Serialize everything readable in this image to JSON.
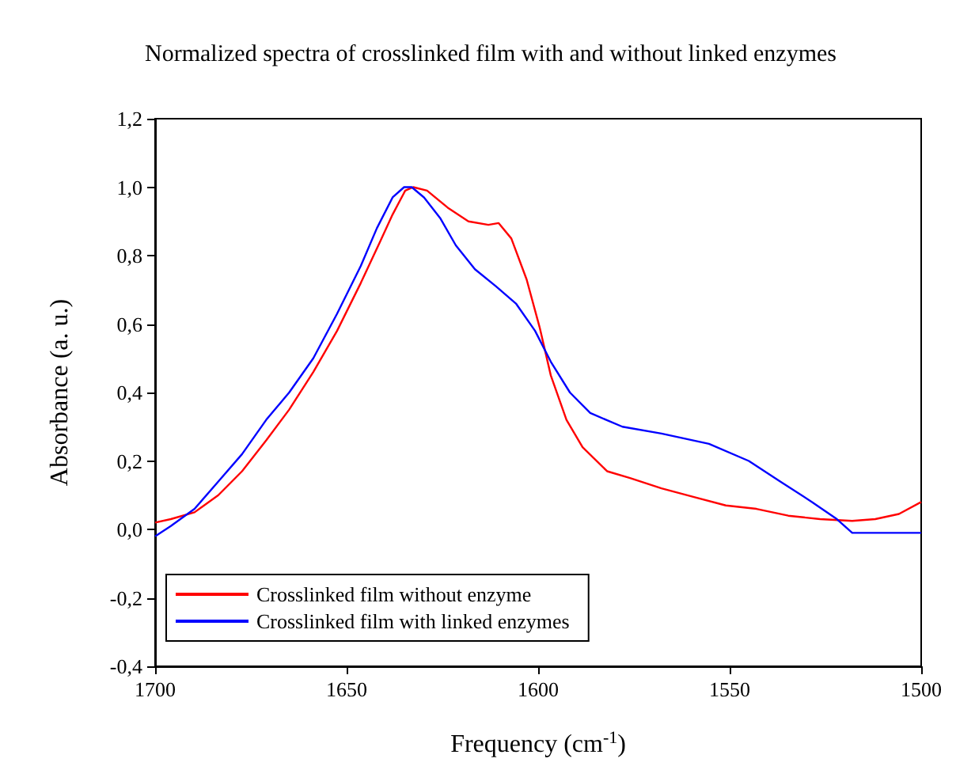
{
  "chart_data": {
    "type": "line",
    "title": "Normalized spectra of crosslinked film with and without linked enzymes",
    "xlabel": "Frequency (cm$^{-1}$)",
    "ylabel": "Absorbance (a. u.)",
    "xlim": [
      1700,
      1500
    ],
    "xticks": [
      1700,
      1650,
      1600,
      1550,
      1500
    ],
    "ylim": [
      -0.4,
      1.2
    ],
    "yticks": [
      {
        "value": -0.4,
        "label": "-0,4"
      },
      {
        "value": -0.2,
        "label": "-0,2"
      },
      {
        "value": 0,
        "label": "0,0"
      },
      {
        "value": 0.2,
        "label": "0,2"
      },
      {
        "value": 0.4,
        "label": "0,4"
      },
      {
        "value": 0.6,
        "label": "0,6"
      },
      {
        "value": 0.8,
        "label": "0,8"
      },
      {
        "value": 1,
        "label": "1,0"
      },
      {
        "value": 1.2,
        "label": "1,2"
      }
    ],
    "grid": false,
    "legend": "bottom left",
    "marker": "none",
    "line_style": "solid",
    "series": [
      {
        "name": "Crosslinked film without enzyme",
        "color": "#ff0000",
        "x": [
          1700,
          1695.9,
          1689.7,
          1683.5,
          1677.3,
          1671,
          1665,
          1658.7,
          1652.5,
          1646.3,
          1641.3,
          1638,
          1634.7,
          1632.6,
          1629,
          1623.6,
          1618.2,
          1613,
          1610.3,
          1607,
          1603,
          1599.6,
          1596.7,
          1592.6,
          1588.4,
          1582,
          1576,
          1567.8,
          1559.5,
          1551,
          1543,
          1534.7,
          1526.4,
          1518,
          1512,
          1505.8,
          1500
        ],
        "values": [
          0.02,
          0.03,
          0.05,
          0.1,
          0.17,
          0.26,
          0.35,
          0.46,
          0.58,
          0.72,
          0.84,
          0.92,
          0.99,
          1.0,
          0.99,
          0.94,
          0.9,
          0.89,
          0.895,
          0.85,
          0.73,
          0.59,
          0.45,
          0.32,
          0.24,
          0.17,
          0.15,
          0.12,
          0.095,
          0.07,
          0.06,
          0.04,
          0.03,
          0.025,
          0.03,
          0.045,
          0.08
        ]
      },
      {
        "name": "Crosslinked film with linked enzymes",
        "color": "#0000ff",
        "x": [
          1700,
          1695.9,
          1689.7,
          1683.5,
          1677.3,
          1671,
          1665,
          1658.7,
          1652.5,
          1646.3,
          1642.1,
          1638,
          1635,
          1633,
          1629.8,
          1625.6,
          1621.5,
          1616.5,
          1611,
          1605.8,
          1600.8,
          1596.7,
          1591.7,
          1586.4,
          1578,
          1567.8,
          1555.4,
          1545,
          1536.8,
          1528.5,
          1522,
          1518,
          1512,
          1500
        ],
        "values": [
          -0.02,
          0.01,
          0.06,
          0.14,
          0.22,
          0.32,
          0.4,
          0.5,
          0.63,
          0.77,
          0.88,
          0.97,
          1.0,
          1.0,
          0.97,
          0.91,
          0.83,
          0.76,
          0.71,
          0.66,
          0.58,
          0.49,
          0.4,
          0.34,
          0.3,
          0.28,
          0.25,
          0.2,
          0.14,
          0.08,
          0.03,
          -0.01,
          -0.01,
          -0.01
        ]
      }
    ]
  }
}
